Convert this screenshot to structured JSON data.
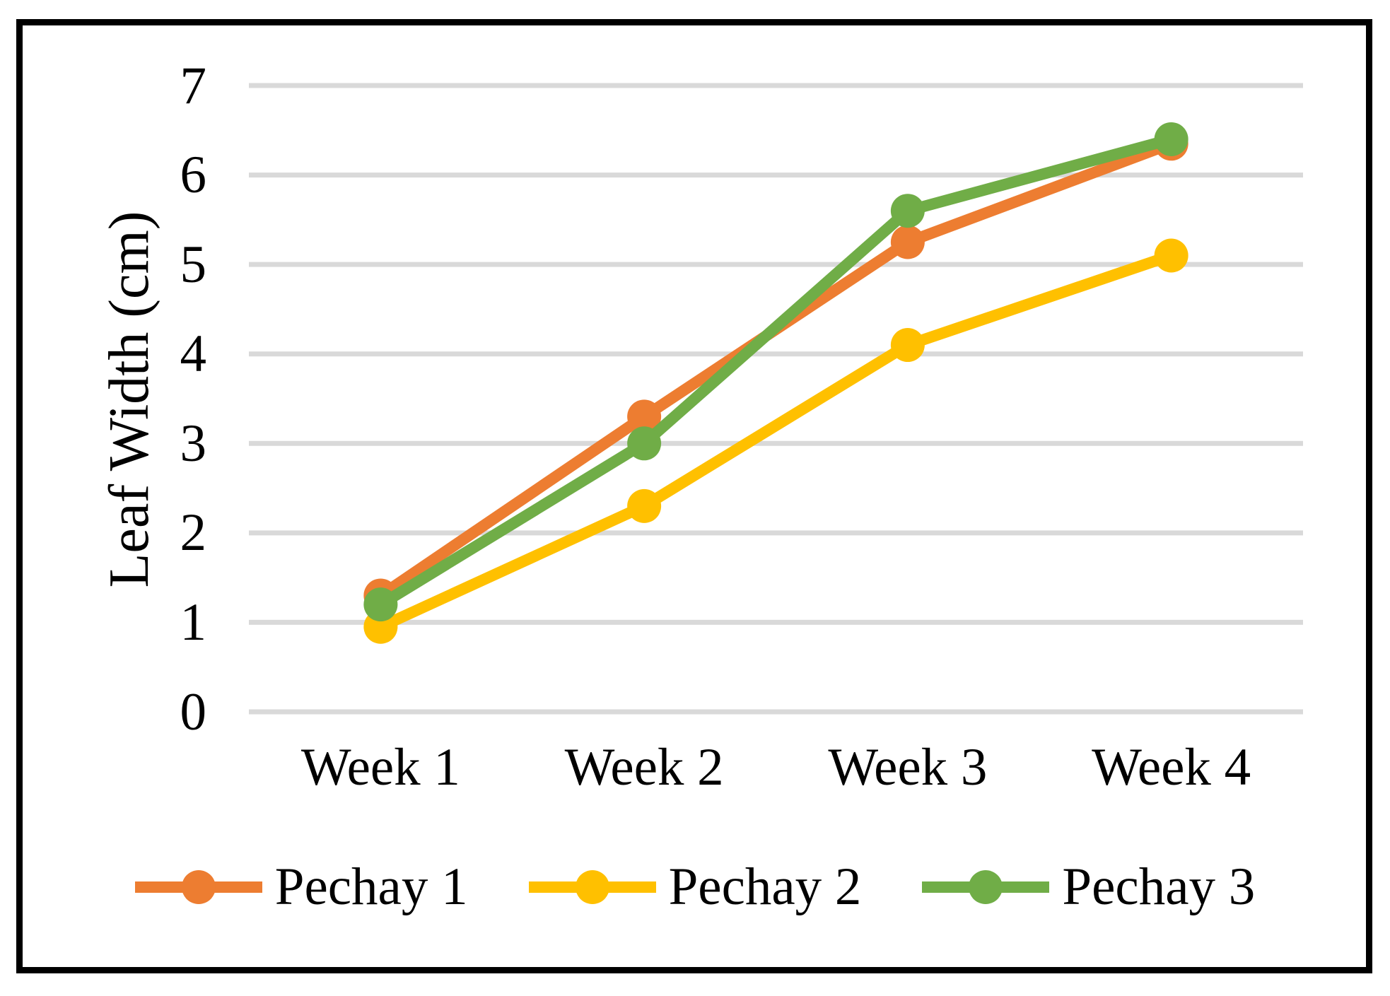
{
  "chart_data": {
    "type": "line",
    "title": "",
    "xlabel": "",
    "ylabel": "Leaf Width (cm)",
    "categories": [
      "Week 1",
      "Week 2",
      "Week 3",
      "Week 4"
    ],
    "series": [
      {
        "name": "Pechay 1",
        "color": "#ED7D31",
        "values": [
          1.3,
          3.3,
          5.25,
          6.35
        ]
      },
      {
        "name": "Pechay 2",
        "color": "#FFC000",
        "values": [
          0.95,
          2.3,
          4.1,
          5.1
        ]
      },
      {
        "name": "Pechay 3",
        "color": "#70AD47",
        "values": [
          1.2,
          3.0,
          5.6,
          6.4
        ]
      }
    ],
    "y_ticks": [
      "0",
      "1",
      "2",
      "3",
      "4",
      "5",
      "6",
      "7"
    ],
    "ylim": [
      0,
      7
    ],
    "grid": "horizontal-only",
    "gridline_color": "#D9D9D9",
    "marker": "circle",
    "legend_position": "bottom",
    "frame_color": "#000000"
  }
}
